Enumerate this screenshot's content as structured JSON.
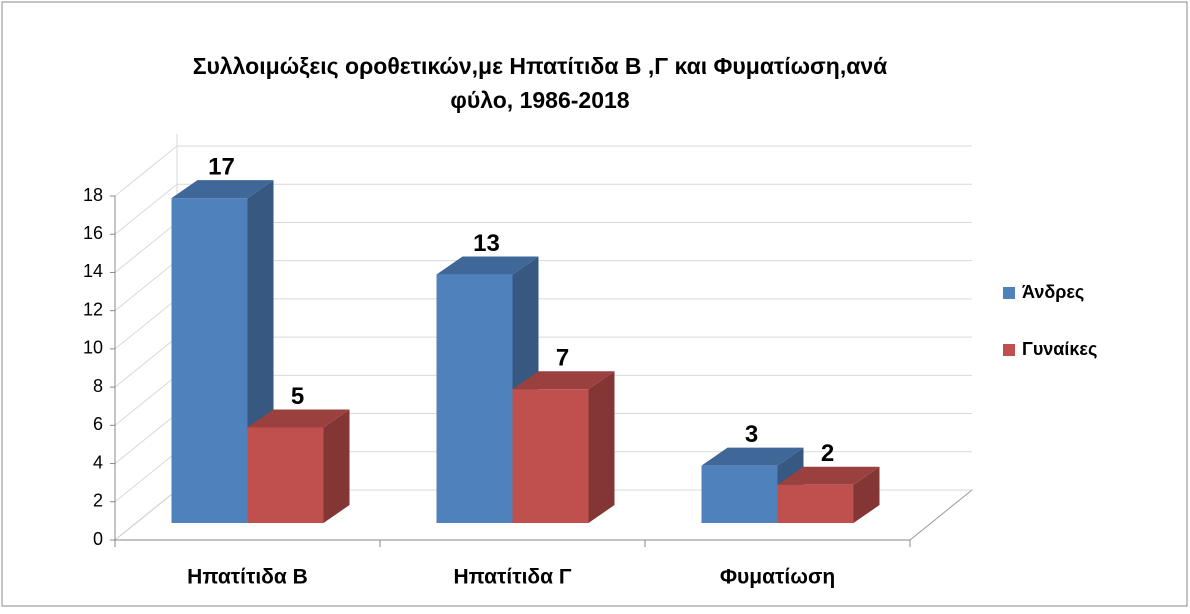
{
  "chart_data": {
    "type": "bar3d",
    "title": "Συλλοιμώξεις οροθετικών,με Ηπατίτιδα Β ,Γ και Φυματίωση,ανά",
    "subtitle": "φύλο, 1986-2018",
    "categories": [
      "Ηπατίτιδα Β",
      "Ηπατίτιδα Γ",
      "Φυματίωση"
    ],
    "series": [
      {
        "name": "Άνδρες",
        "color": "#4f81bd",
        "values": [
          17,
          13,
          3
        ]
      },
      {
        "name": "Γυναίκες",
        "color": "#c0504d",
        "values": [
          5,
          7,
          2
        ]
      }
    ],
    "ylim": [
      0,
      18
    ],
    "yticks": [
      0,
      2,
      4,
      6,
      8,
      10,
      12,
      14,
      16,
      18
    ],
    "grid": true,
    "legend": "right"
  }
}
